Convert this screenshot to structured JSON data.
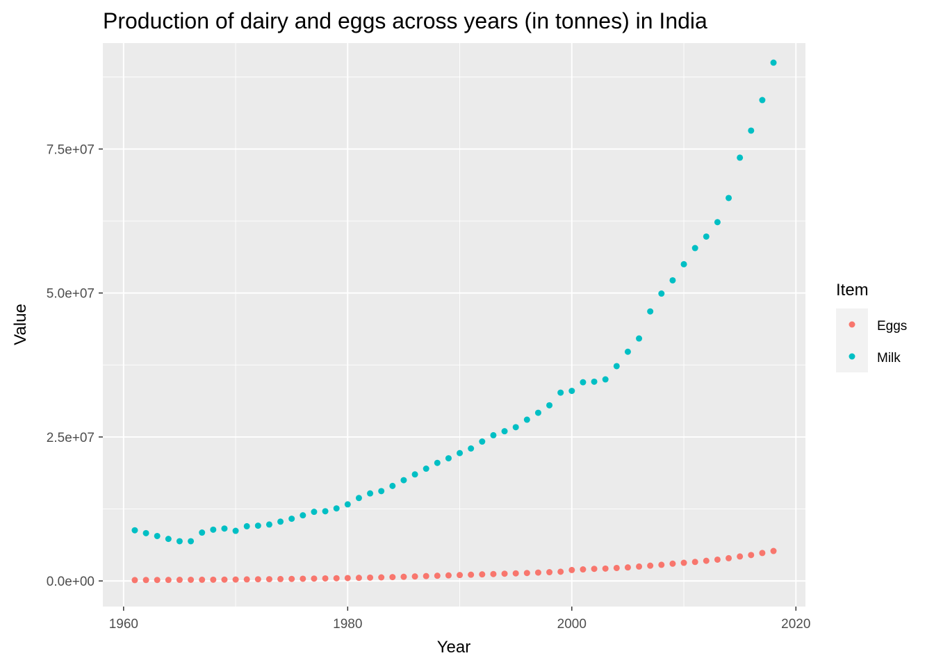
{
  "chart_data": {
    "type": "scatter",
    "title": "Production of dairy and eggs across years (in tonnes) in India",
    "xlabel": "Year",
    "ylabel": "Value",
    "xlim": [
      1958.15,
      2020.85
    ],
    "ylim": [
      -4447500,
      93397500
    ],
    "x_ticks": [
      1960,
      1980,
      2000,
      2020
    ],
    "x_tick_labels": [
      "1960",
      "1980",
      "2000",
      "2020"
    ],
    "y_ticks": [
      0,
      25000000,
      50000000,
      75000000
    ],
    "y_tick_labels": [
      "0.0e+00",
      "2.5e+07",
      "5.0e+07",
      "7.5e+07"
    ],
    "grid": true,
    "legend": {
      "title": "Item",
      "position": "right"
    },
    "series": [
      {
        "name": "Eggs",
        "color": "#F8766D",
        "x": [
          1961,
          1962,
          1963,
          1964,
          1965,
          1966,
          1967,
          1968,
          1969,
          1970,
          1971,
          1972,
          1973,
          1974,
          1975,
          1976,
          1977,
          1978,
          1979,
          1980,
          1981,
          1982,
          1983,
          1984,
          1985,
          1986,
          1987,
          1988,
          1989,
          1990,
          1991,
          1992,
          1993,
          1994,
          1995,
          1996,
          1997,
          1998,
          1999,
          2000,
          2001,
          2002,
          2003,
          2004,
          2005,
          2006,
          2007,
          2008,
          2009,
          2010,
          2011,
          2012,
          2013,
          2014,
          2015,
          2016,
          2017,
          2018
        ],
        "values": [
          150000,
          160000,
          170000,
          180000,
          190000,
          200000,
          210000,
          220000,
          230000,
          250000,
          270000,
          290000,
          310000,
          330000,
          350000,
          380000,
          410000,
          440000,
          470000,
          500000,
          540000,
          580000,
          620000,
          670000,
          720000,
          780000,
          840000,
          900000,
          960000,
          1020000,
          1080000,
          1140000,
          1200000,
          1260000,
          1320000,
          1380000,
          1450000,
          1520000,
          1600000,
          1900000,
          2000000,
          2100000,
          2150000,
          2250000,
          2350000,
          2500000,
          2650000,
          2800000,
          3000000,
          3150000,
          3300000,
          3500000,
          3700000,
          3950000,
          4250000,
          4500000,
          4850000,
          5200000
        ]
      },
      {
        "name": "Milk",
        "color": "#00BFC4",
        "x": [
          1961,
          1962,
          1963,
          1964,
          1965,
          1966,
          1967,
          1968,
          1969,
          1970,
          1971,
          1972,
          1973,
          1974,
          1975,
          1976,
          1977,
          1978,
          1979,
          1980,
          1981,
          1982,
          1983,
          1984,
          1985,
          1986,
          1987,
          1988,
          1989,
          1990,
          1991,
          1992,
          1993,
          1994,
          1995,
          1996,
          1997,
          1998,
          1999,
          2000,
          2001,
          2002,
          2003,
          2004,
          2005,
          2006,
          2007,
          2008,
          2009,
          2010,
          2011,
          2012,
          2013,
          2014,
          2015,
          2016,
          2017,
          2018
        ],
        "values": [
          8800000,
          8300000,
          7800000,
          7300000,
          6900000,
          6900000,
          8400000,
          8900000,
          9100000,
          8700000,
          9500000,
          9600000,
          9800000,
          10300000,
          10800000,
          11400000,
          12000000,
          12100000,
          12600000,
          13300000,
          14400000,
          15200000,
          15600000,
          16500000,
          17500000,
          18500000,
          19500000,
          20500000,
          21300000,
          22200000,
          23000000,
          24200000,
          25300000,
          26000000,
          26700000,
          28000000,
          29200000,
          30500000,
          32700000,
          33000000,
          34500000,
          34600000,
          35000000,
          37300000,
          39800000,
          42100000,
          46800000,
          49900000,
          52200000,
          55000000,
          57800000,
          59800000,
          62300000,
          66500000,
          73500000,
          78200000,
          83500000,
          90000000
        ]
      }
    ]
  }
}
